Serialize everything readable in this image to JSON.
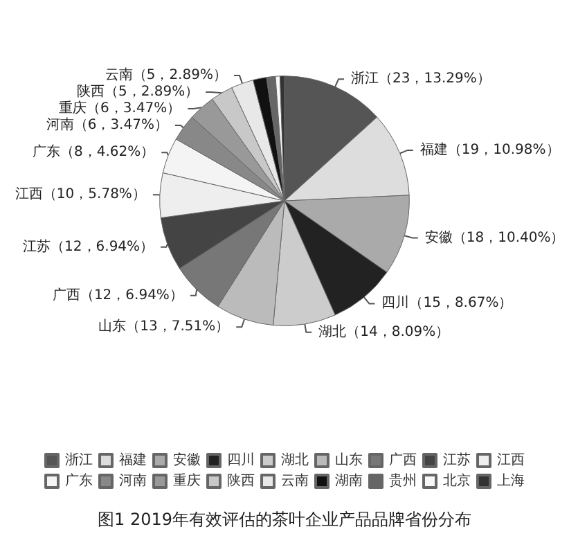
{
  "chart_data": {
    "type": "pie",
    "title": "图1 2019年有效评估的茶叶企业产品品牌省份分布",
    "categories": [
      "浙江",
      "福建",
      "安徽",
      "四川",
      "湖北",
      "山东",
      "广西",
      "江苏",
      "江西",
      "广东",
      "河南",
      "重庆",
      "陕西",
      "云南",
      "湖南",
      "贵州",
      "北京",
      "上海"
    ],
    "values": [
      23,
      19,
      18,
      15,
      14,
      13,
      12,
      12,
      10,
      8,
      6,
      6,
      5,
      5,
      3,
      2,
      1,
      1
    ],
    "value_labels": [
      "浙江（23，13.29%）",
      "福建（19，10.98%）",
      "安徽（18，10.40%）",
      "四川（15，8.67%）",
      "湖北（14，8.09%）",
      "山东（13，7.51%）",
      "广西（12，6.94%）",
      "江苏（12，6.94%）",
      "江西（10，5.78%）",
      "广东（8，4.62%）",
      "河南（6，3.47%）",
      "重庆（6，3.47%）",
      "陕西（5，2.89%）",
      "云南（5，2.89%）",
      null,
      null,
      null,
      null
    ],
    "colors": [
      "#555555",
      "#dddddd",
      "#aaaaaa",
      "#222222",
      "#cccccc",
      "#bbbbbb",
      "#777777",
      "#444444",
      "#eeeeee",
      "#f4f4f4",
      "#888888",
      "#999999",
      "#c8c8c8",
      "#e8e8e8",
      "#111111",
      "#666666",
      "#f8f8f8",
      "#333333"
    ],
    "legend": "bottom"
  }
}
